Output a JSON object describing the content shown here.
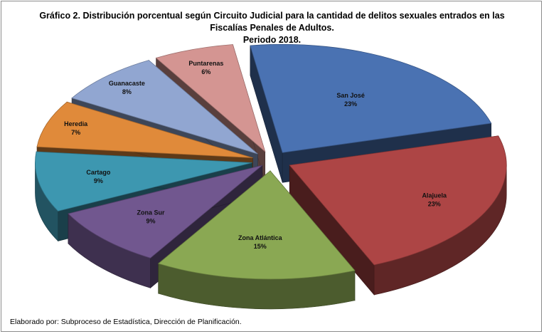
{
  "chart_data": {
    "type": "pie",
    "title_lines": [
      "Gráfico 2. Distribución porcentual según Circuito Judicial para la cantidad de delitos sexuales entrados en las",
      "Fiscalías Penales de Adultos.",
      "Periodo 2018."
    ],
    "slices": [
      {
        "label": "San José",
        "value": 23,
        "value_label": "23%",
        "color": "#4a72b2"
      },
      {
        "label": "Alajuela",
        "value": 23,
        "value_label": "23%",
        "color": "#ad4545"
      },
      {
        "label": "Zona Atlántica",
        "value": 15,
        "value_label": "15%",
        "color": "#8aa853"
      },
      {
        "label": "Zona Sur",
        "value": 9,
        "value_label": "9%",
        "color": "#71578f"
      },
      {
        "label": "Cartago",
        "value": 9,
        "value_label": "9%",
        "color": "#3d97b0"
      },
      {
        "label": "Heredia",
        "value": 7,
        "value_label": "7%",
        "color": "#e08a3a"
      },
      {
        "label": "Guanacaste",
        "value": 8,
        "value_label": "8%",
        "color": "#91a6d1"
      },
      {
        "label": "Puntarenas",
        "value": 6,
        "value_label": "6%",
        "color": "#d49592"
      }
    ],
    "style": "3d-exploded"
  },
  "footer": "Elaborado por: Subproceso de Estadística, Dirección de Planificación."
}
